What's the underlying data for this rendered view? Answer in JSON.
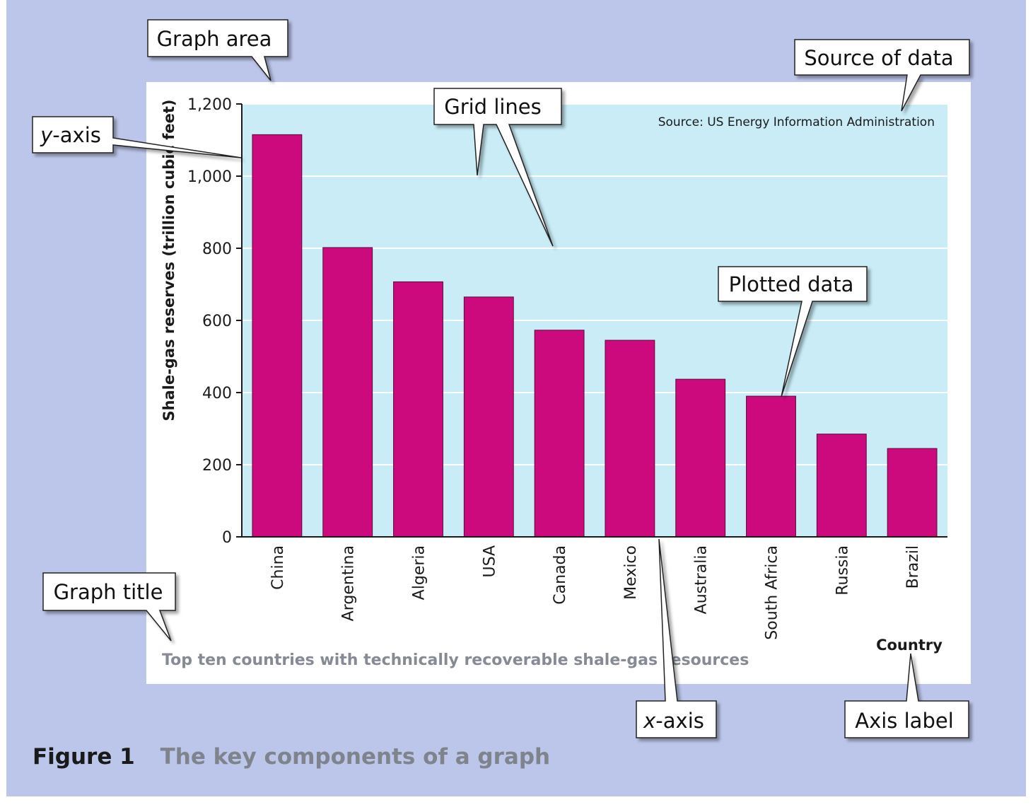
{
  "chart_data": {
    "type": "bar",
    "title": "Top ten countries with technically recoverable shale-gas resources",
    "source": "Source: US Energy Information Administration",
    "xlabel": "Country",
    "ylabel": "Shale-gas reserves (trillion cubic feet)",
    "categories": [
      "China",
      "Argentina",
      "Algeria",
      "USA",
      "Canada",
      "Mexico",
      "Australia",
      "South Africa",
      "Russia",
      "Brazil"
    ],
    "values": [
      1115,
      802,
      707,
      665,
      573,
      545,
      437,
      390,
      285,
      245
    ],
    "ylim": [
      0,
      1200
    ],
    "yticks": [
      "0",
      "200",
      "400",
      "600",
      "800",
      "1,000",
      "1,200"
    ],
    "ytick_values": [
      0,
      200,
      400,
      600,
      800,
      1000,
      1200
    ],
    "grid": true,
    "colors": {
      "bar": "#cc0a7e",
      "plot_bg": "#c9ecf7",
      "grid": "#ffffff"
    }
  },
  "callouts": {
    "graph_area": "Graph area",
    "source_of_data": "Source of data",
    "y_axis_prefix": "y",
    "y_axis_suffix": "-axis",
    "grid_lines": "Grid lines",
    "plotted_data": "Plotted data",
    "graph_title": "Graph title",
    "x_axis_prefix": "x",
    "x_axis_suffix": "-axis",
    "axis_label": "Axis label"
  },
  "caption": {
    "figure_number": "Figure 1",
    "title": "The key components of a graph"
  },
  "colors": {
    "panel_bg": "#bcc6ea",
    "caption_title": "#7e838c"
  }
}
